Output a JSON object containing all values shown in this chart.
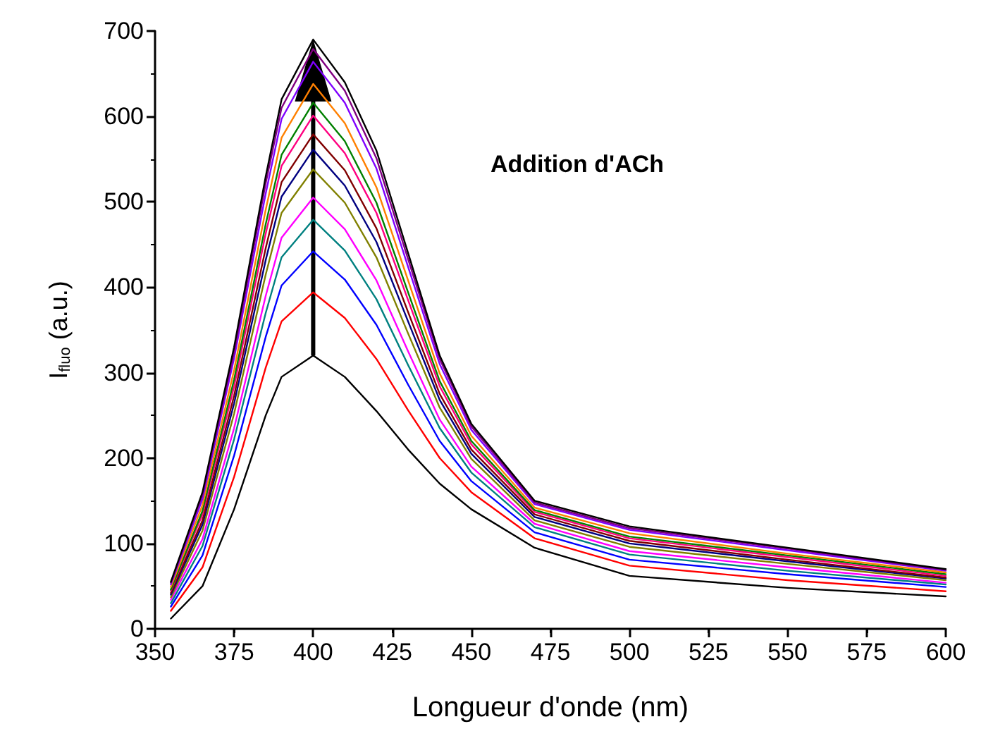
{
  "chart_data": {
    "type": "line",
    "xlabel": "Longueur d'onde (nm)",
    "ylabel": "I$_{fluo}$ (a.u.)",
    "annotations": [
      "Addition d'ACh"
    ],
    "x": [
      355,
      365,
      375,
      385,
      390,
      400,
      410,
      420,
      430,
      440,
      450,
      470,
      500,
      550,
      600
    ],
    "xlim": [
      350,
      600
    ],
    "xticks": [
      350,
      375,
      400,
      425,
      450,
      475,
      500,
      525,
      550,
      575,
      600
    ],
    "ylim": [
      0,
      700
    ],
    "yticks": [
      0,
      100,
      200,
      300,
      400,
      500,
      600,
      700
    ],
    "grid": false,
    "marker": "none",
    "line_style": "solid",
    "series": [
      {
        "color": "#000000",
        "values": [
          12,
          50,
          140,
          250,
          295,
          320,
          295,
          255,
          210,
          170,
          140,
          95,
          62,
          48,
          38
        ]
      },
      {
        "color": "#ff0000",
        "values": [
          21,
          72,
          178,
          306,
          360,
          394,
          364,
          316,
          256,
          200,
          160,
          106,
          74,
          57,
          44
        ]
      },
      {
        "color": "#0000ff",
        "values": [
          26,
          86,
          203,
          342,
          402,
          442,
          409,
          356,
          286,
          220,
          173,
          113,
          81,
          64,
          49
        ]
      },
      {
        "color": "#008080",
        "values": [
          30,
          97,
          222,
          370,
          435,
          479,
          443,
          386,
          309,
          235,
          183,
          119,
          87,
          68,
          52
        ]
      },
      {
        "color": "#ff00ff",
        "values": [
          34,
          105,
          235,
          390,
          458,
          505,
          468,
          408,
          325,
          245,
          190,
          123,
          91,
          72,
          54
        ]
      },
      {
        "color": "#808000",
        "values": [
          37,
          115,
          252,
          415,
          487,
          538,
          499,
          435,
          346,
          259,
          199,
          127,
          96,
          76,
          57
        ]
      },
      {
        "color": "#000080",
        "values": [
          40,
          122,
          264,
          432,
          506,
          561,
          519,
          453,
          360,
          268,
          205,
          131,
          100,
          79,
          59
        ]
      },
      {
        "color": "#800000",
        "values": [
          42,
          127,
          273,
          446,
          523,
          579,
          537,
          469,
          371,
          275,
          210,
          134,
          103,
          81,
          60
        ]
      },
      {
        "color": "#ff0080",
        "values": [
          45,
          134,
          284,
          463,
          542,
          601,
          557,
          487,
          385,
          284,
          216,
          137,
          106,
          84,
          62
        ]
      },
      {
        "color": "#008000",
        "values": [
          46,
          138,
          292,
          474,
          555,
          616,
          571,
          499,
          394,
          290,
          220,
          139,
          108,
          86,
          64
        ]
      },
      {
        "color": "#ff8000",
        "values": [
          49,
          145,
          303,
          491,
          575,
          638,
          592,
          517,
          408,
          299,
          226,
          142,
          112,
          88,
          66
        ]
      },
      {
        "color": "#8000ff",
        "values": [
          52,
          152,
          317,
          510,
          597,
          664,
          616,
          539,
          424,
          310,
          233,
          146,
          116,
          92,
          68
        ]
      },
      {
        "color": "#800080",
        "values": [
          54,
          157,
          324,
          522,
          610,
          679,
          630,
          551,
          433,
          316,
          237,
          148,
          118,
          94,
          69
        ]
      },
      {
        "color": "#000000",
        "values": [
          55,
          160,
          330,
          530,
          620,
          690,
          640,
          560,
          440,
          320,
          240,
          150,
          120,
          95,
          70
        ]
      }
    ]
  }
}
